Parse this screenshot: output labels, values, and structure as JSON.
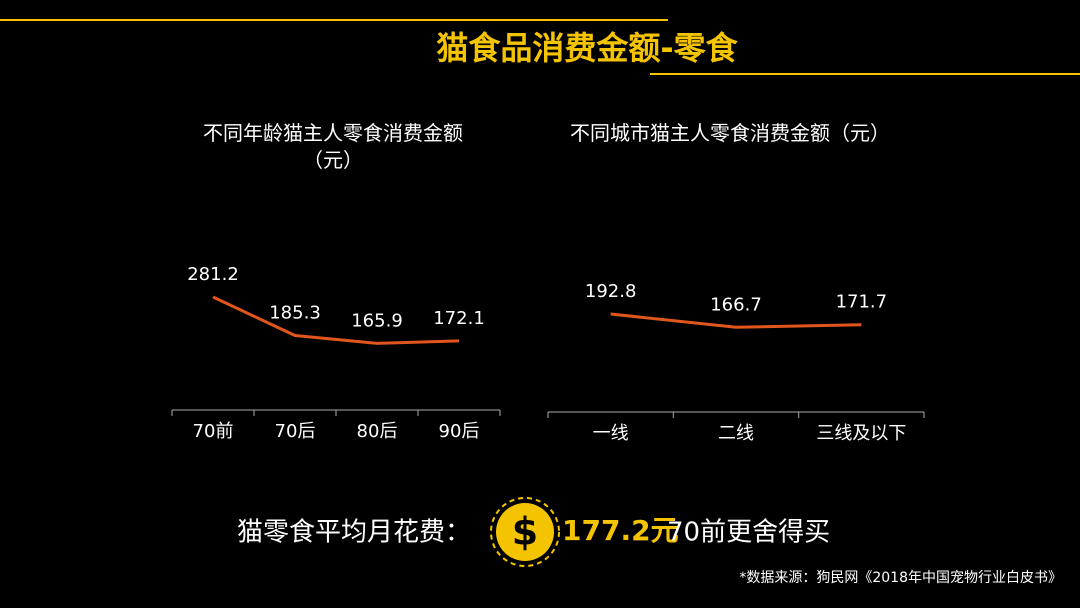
{
  "title": "猫食品消费金额-零食",
  "chart_data": [
    {
      "type": "line",
      "title": "不同年龄猫主人零食消费金额（元）",
      "categories": [
        "70前",
        "70后",
        "80后",
        "90后"
      ],
      "values": [
        281.2,
        185.3,
        165.9,
        172.1
      ],
      "color": "#e0561c"
    },
    {
      "type": "line",
      "title": "不同城市猫主人零食消费金额（元）",
      "categories": [
        "一线",
        "二线",
        "三线及以下"
      ],
      "values": [
        192.8,
        166.7,
        171.7
      ],
      "color": "#e0561c"
    }
  ],
  "summary": {
    "label": "猫零食平均月花费：",
    "symbol": "$",
    "amount": "177.2元",
    "note": "70前更舍得买"
  },
  "source": "*数据来源：狗民网《2018年中国宠物行业白皮书》"
}
